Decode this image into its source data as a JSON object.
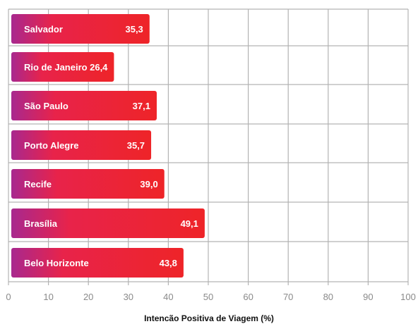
{
  "chart_data": {
    "type": "bar",
    "orientation": "horizontal",
    "categories": [
      "Salvador",
      "Rio de Janeiro",
      "São Paulo",
      "Porto Alegre",
      "Recife",
      "Brasília",
      "Belo Horizonte"
    ],
    "values": [
      35.3,
      26.4,
      37.1,
      35.7,
      39.0,
      49.1,
      43.8
    ],
    "value_labels": [
      "35,3",
      "26,4",
      "37,1",
      "35,7",
      "39,0",
      "49,1",
      "43,8"
    ],
    "xlabel": "Intencão Positiva de Viagem (%)",
    "ylabel": "",
    "xlim": [
      0,
      100
    ],
    "x_ticks": [
      0,
      10,
      20,
      30,
      40,
      50,
      60,
      70,
      80,
      90,
      100
    ],
    "grid": true,
    "legend": "none",
    "colors": {
      "bar_start": "#a8288f",
      "bar_end": "#ee2428",
      "grid": "#b3b3b3",
      "tick_text": "#8a8a8a"
    }
  }
}
